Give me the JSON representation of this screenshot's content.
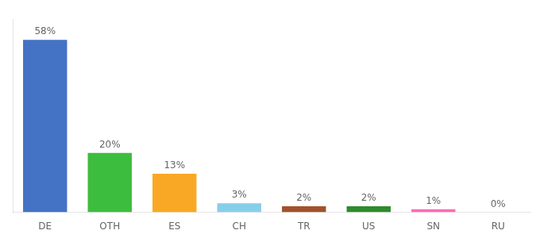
{
  "chart_data": {
    "type": "bar",
    "categories": [
      "DE",
      "OTH",
      "ES",
      "CH",
      "TR",
      "US",
      "SN",
      "RU"
    ],
    "values": [
      58,
      20,
      13,
      3,
      2,
      2,
      1,
      0
    ],
    "value_labels": [
      "58%",
      "20%",
      "13%",
      "3%",
      "2%",
      "2%",
      "1%",
      "0%"
    ],
    "colors": [
      "#4472C4",
      "#3DBD3D",
      "#F9A825",
      "#87CEEB",
      "#A0522D",
      "#2E8B2E",
      "#FF69B4",
      "#CCCCCC"
    ],
    "ylim": [
      0,
      65
    ],
    "grid": false,
    "tick_labels": "x",
    "data_labels": true
  }
}
